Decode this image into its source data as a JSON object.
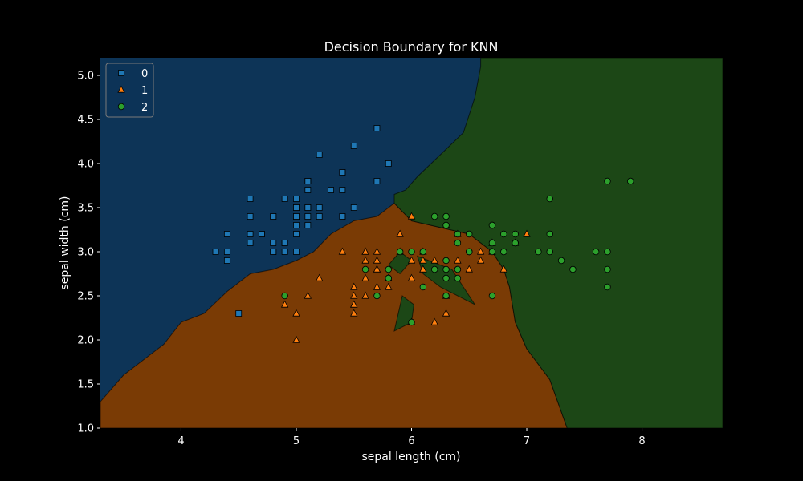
{
  "chart_data": {
    "type": "scatter",
    "title": "Decision Boundary for KNN",
    "xlabel": "sepal length (cm)",
    "ylabel": "sepal width (cm)",
    "xlim": [
      3.3,
      8.7
    ],
    "ylim": [
      1.0,
      5.2
    ],
    "x_ticks": [
      4,
      5,
      6,
      7,
      8
    ],
    "x_tick_labels": [
      "4",
      "5",
      "6",
      "7",
      "8"
    ],
    "y_ticks": [
      1.0,
      1.5,
      2.0,
      2.5,
      3.0,
      3.5,
      4.0,
      4.5,
      5.0
    ],
    "y_tick_labels": [
      "1.0",
      "1.5",
      "2.0",
      "2.5",
      "3.0",
      "3.5",
      "4.0",
      "4.5",
      "5.0"
    ],
    "grid": false,
    "legend_position": "top-left",
    "colors": {
      "background": "#000000",
      "region_0": "#0d3457",
      "region_1": "#7a3b05",
      "region_2": "#1c4716",
      "marker_0": "#1f77b4",
      "marker_1": "#ff7f0e",
      "marker_2": "#2ca02c"
    },
    "regions": [
      {
        "class": "1",
        "outline": [
          [
            3.3,
            1.0
          ],
          [
            7.35,
            1.0
          ],
          [
            7.2,
            1.55
          ],
          [
            7.0,
            1.9
          ],
          [
            6.9,
            2.2
          ],
          [
            6.85,
            2.6
          ],
          [
            6.8,
            2.8
          ],
          [
            6.7,
            3.0
          ],
          [
            6.5,
            3.2
          ],
          [
            6.0,
            3.35
          ],
          [
            5.85,
            3.55
          ],
          [
            5.7,
            3.4
          ],
          [
            5.5,
            3.35
          ],
          [
            5.3,
            3.2
          ],
          [
            5.15,
            3.0
          ],
          [
            5.0,
            2.9
          ],
          [
            4.8,
            2.8
          ],
          [
            4.6,
            2.75
          ],
          [
            4.4,
            2.55
          ],
          [
            4.2,
            2.3
          ],
          [
            4.0,
            2.2
          ],
          [
            3.85,
            1.95
          ],
          [
            3.7,
            1.8
          ],
          [
            3.5,
            1.6
          ],
          [
            3.3,
            1.3
          ]
        ]
      },
      {
        "class": "2",
        "outline": [
          [
            6.6,
            5.2
          ],
          [
            8.7,
            5.2
          ],
          [
            8.7,
            1.0
          ],
          [
            7.35,
            1.0
          ],
          [
            7.2,
            1.55
          ],
          [
            7.0,
            1.9
          ],
          [
            6.9,
            2.2
          ],
          [
            6.85,
            2.6
          ],
          [
            6.8,
            2.8
          ],
          [
            6.7,
            3.0
          ],
          [
            6.5,
            3.2
          ],
          [
            6.0,
            3.35
          ],
          [
            5.85,
            3.55
          ],
          [
            5.85,
            3.65
          ],
          [
            5.95,
            3.7
          ],
          [
            6.05,
            3.85
          ],
          [
            6.25,
            4.1
          ],
          [
            6.45,
            4.35
          ],
          [
            6.55,
            4.75
          ],
          [
            6.6,
            5.1
          ]
        ]
      },
      {
        "class": "2",
        "outline": [
          [
            6.05,
            2.95
          ],
          [
            6.35,
            2.8
          ],
          [
            6.55,
            2.4
          ],
          [
            6.25,
            2.6
          ],
          [
            6.1,
            2.75
          ]
        ]
      },
      {
        "class": "2",
        "outline": [
          [
            5.9,
            3.0
          ],
          [
            5.8,
            2.85
          ],
          [
            5.9,
            2.75
          ],
          [
            6.0,
            2.9
          ]
        ]
      },
      {
        "class": "2",
        "outline": [
          [
            5.92,
            2.5
          ],
          [
            5.85,
            2.1
          ],
          [
            6.0,
            2.2
          ],
          [
            6.02,
            2.4
          ]
        ]
      }
    ],
    "series": [
      {
        "name": "0",
        "marker": "square",
        "points": [
          [
            5.1,
            3.5
          ],
          [
            4.9,
            3.0
          ],
          [
            4.7,
            3.2
          ],
          [
            4.6,
            3.1
          ],
          [
            5.0,
            3.6
          ],
          [
            5.4,
            3.9
          ],
          [
            4.6,
            3.4
          ],
          [
            5.0,
            3.4
          ],
          [
            4.4,
            2.9
          ],
          [
            4.9,
            3.1
          ],
          [
            5.4,
            3.7
          ],
          [
            4.8,
            3.4
          ],
          [
            4.8,
            3.0
          ],
          [
            4.3,
            3.0
          ],
          [
            5.8,
            4.0
          ],
          [
            5.7,
            4.4
          ],
          [
            5.4,
            3.9
          ],
          [
            5.1,
            3.5
          ],
          [
            5.7,
            3.8
          ],
          [
            5.1,
            3.8
          ],
          [
            5.4,
            3.4
          ],
          [
            5.1,
            3.7
          ],
          [
            4.6,
            3.6
          ],
          [
            5.1,
            3.3
          ],
          [
            4.8,
            3.4
          ],
          [
            5.0,
            3.0
          ],
          [
            5.0,
            3.4
          ],
          [
            5.2,
            3.5
          ],
          [
            5.2,
            3.4
          ],
          [
            4.7,
            3.2
          ],
          [
            4.8,
            3.1
          ],
          [
            5.4,
            3.4
          ],
          [
            5.2,
            4.1
          ],
          [
            5.5,
            4.2
          ],
          [
            4.9,
            3.1
          ],
          [
            5.0,
            3.2
          ],
          [
            5.5,
            3.5
          ],
          [
            4.9,
            3.6
          ],
          [
            4.4,
            3.0
          ],
          [
            5.1,
            3.4
          ],
          [
            5.0,
            3.5
          ],
          [
            4.5,
            2.3
          ],
          [
            4.4,
            3.2
          ],
          [
            5.0,
            3.5
          ],
          [
            5.1,
            3.8
          ],
          [
            4.8,
            3.0
          ],
          [
            5.1,
            3.8
          ],
          [
            4.6,
            3.2
          ],
          [
            5.3,
            3.7
          ],
          [
            5.0,
            3.3
          ]
        ]
      },
      {
        "name": "1",
        "marker": "triangle",
        "points": [
          [
            7.0,
            3.2
          ],
          [
            6.4,
            3.2
          ],
          [
            6.9,
            3.1
          ],
          [
            5.5,
            2.3
          ],
          [
            6.5,
            2.8
          ],
          [
            5.7,
            2.8
          ],
          [
            6.3,
            3.3
          ],
          [
            4.9,
            2.4
          ],
          [
            6.6,
            2.9
          ],
          [
            5.2,
            2.7
          ],
          [
            5.0,
            2.0
          ],
          [
            5.9,
            3.0
          ],
          [
            6.0,
            2.2
          ],
          [
            6.1,
            2.9
          ],
          [
            5.6,
            2.9
          ],
          [
            6.7,
            3.1
          ],
          [
            5.6,
            3.0
          ],
          [
            5.8,
            2.7
          ],
          [
            6.2,
            2.2
          ],
          [
            5.6,
            2.5
          ],
          [
            5.9,
            3.2
          ],
          [
            6.1,
            2.8
          ],
          [
            6.3,
            2.5
          ],
          [
            6.1,
            2.8
          ],
          [
            6.4,
            2.9
          ],
          [
            6.6,
            3.0
          ],
          [
            6.8,
            2.8
          ],
          [
            6.7,
            3.0
          ],
          [
            6.0,
            2.9
          ],
          [
            5.7,
            2.6
          ],
          [
            5.5,
            2.4
          ],
          [
            5.5,
            2.4
          ],
          [
            5.8,
            2.7
          ],
          [
            6.0,
            2.7
          ],
          [
            5.4,
            3.0
          ],
          [
            6.0,
            3.4
          ],
          [
            6.7,
            3.1
          ],
          [
            6.3,
            2.3
          ],
          [
            5.6,
            3.0
          ],
          [
            5.5,
            2.5
          ],
          [
            5.5,
            2.6
          ],
          [
            6.1,
            3.0
          ],
          [
            5.8,
            2.6
          ],
          [
            5.0,
            2.3
          ],
          [
            5.6,
            2.7
          ],
          [
            5.7,
            3.0
          ],
          [
            5.7,
            2.9
          ],
          [
            6.2,
            2.9
          ],
          [
            5.1,
            2.5
          ],
          [
            5.7,
            2.8
          ]
        ]
      },
      {
        "name": "2",
        "marker": "circle",
        "points": [
          [
            6.3,
            3.3
          ],
          [
            5.8,
            2.7
          ],
          [
            7.1,
            3.0
          ],
          [
            6.3,
            2.9
          ],
          [
            6.5,
            3.0
          ],
          [
            7.6,
            3.0
          ],
          [
            4.9,
            2.5
          ],
          [
            7.3,
            2.9
          ],
          [
            6.7,
            2.5
          ],
          [
            7.2,
            3.6
          ],
          [
            6.5,
            3.2
          ],
          [
            6.4,
            2.7
          ],
          [
            6.8,
            3.0
          ],
          [
            5.7,
            2.5
          ],
          [
            5.8,
            2.8
          ],
          [
            6.4,
            3.2
          ],
          [
            6.5,
            3.0
          ],
          [
            7.7,
            3.8
          ],
          [
            7.7,
            2.6
          ],
          [
            6.0,
            2.2
          ],
          [
            6.9,
            3.2
          ],
          [
            5.6,
            2.8
          ],
          [
            7.7,
            2.8
          ],
          [
            6.3,
            2.7
          ],
          [
            6.7,
            3.3
          ],
          [
            7.2,
            3.2
          ],
          [
            6.2,
            2.8
          ],
          [
            6.1,
            3.0
          ],
          [
            6.4,
            2.8
          ],
          [
            7.2,
            3.0
          ],
          [
            7.4,
            2.8
          ],
          [
            7.9,
            3.8
          ],
          [
            6.4,
            2.8
          ],
          [
            6.3,
            2.8
          ],
          [
            6.1,
            2.6
          ],
          [
            7.7,
            3.0
          ],
          [
            6.3,
            3.4
          ],
          [
            6.4,
            3.1
          ],
          [
            6.0,
            3.0
          ],
          [
            6.9,
            3.1
          ],
          [
            6.7,
            3.1
          ],
          [
            6.9,
            3.1
          ],
          [
            5.8,
            2.7
          ],
          [
            6.8,
            3.2
          ],
          [
            6.7,
            3.3
          ],
          [
            6.7,
            3.0
          ],
          [
            6.3,
            2.5
          ],
          [
            6.5,
            3.0
          ],
          [
            6.2,
            3.4
          ],
          [
            5.9,
            3.0
          ]
        ]
      }
    ]
  }
}
